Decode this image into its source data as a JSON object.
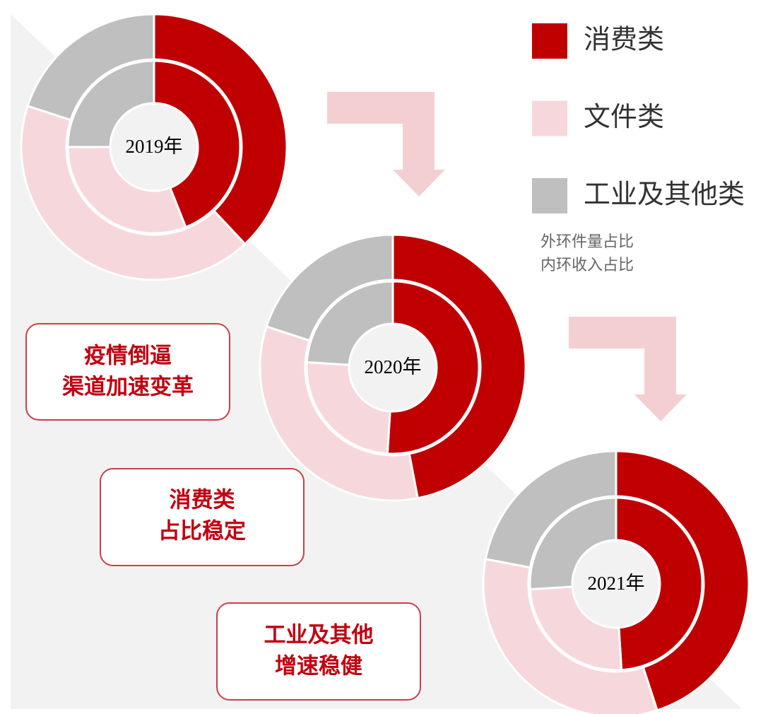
{
  "legend": {
    "labels": [
      "消费类",
      "文件类",
      "工业及其他类"
    ],
    "colors": [
      "#c00000",
      "#f6d8dc",
      "#bfbfbf"
    ]
  },
  "notes": [
    "外环件量占比",
    "内环收入占比"
  ],
  "callouts": [
    [
      "疫情倒逼",
      "渠道加速变革"
    ],
    [
      "消费类",
      "占比稳定"
    ],
    [
      "工业及其他",
      "增速稳健"
    ]
  ],
  "chart_data": [
    {
      "type": "donut",
      "title": "2019年",
      "rings": [
        {
          "values": [
            38,
            42,
            20
          ]
        },
        {
          "values": [
            44,
            31,
            25
          ]
        }
      ]
    },
    {
      "type": "donut",
      "title": "2020年",
      "rings": [
        {
          "values": [
            47,
            33,
            20
          ]
        },
        {
          "values": [
            51,
            25,
            24
          ]
        }
      ]
    },
    {
      "type": "donut",
      "title": "2021年",
      "rings": [
        {
          "values": [
            45,
            33,
            22
          ]
        },
        {
          "values": [
            49,
            25,
            26
          ]
        }
      ]
    }
  ]
}
